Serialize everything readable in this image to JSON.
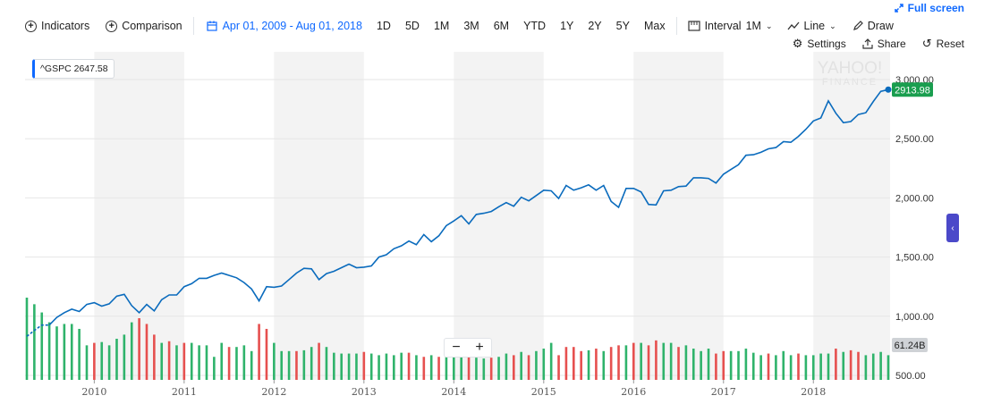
{
  "fullscreen": {
    "label": "Full screen"
  },
  "toolbar": {
    "indicators": "Indicators",
    "comparison": "Comparison",
    "date_range": "Apr 01, 2009 - Aug 01, 2018",
    "ranges": [
      "1D",
      "5D",
      "1M",
      "3M",
      "6M",
      "YTD",
      "1Y",
      "2Y",
      "5Y",
      "Max"
    ],
    "interval_label": "Interval",
    "interval_value": "1M",
    "chart_type": "Line",
    "draw": "Draw",
    "settings": "Settings",
    "share": "Share",
    "reset": "Reset"
  },
  "legend": {
    "symbol": "^GSPC",
    "value": "2647.58"
  },
  "watermark": {
    "line1": "YAHOO!",
    "line2": "FINANCE"
  },
  "colors": {
    "line": "#0a6bbd",
    "up": "#2fb36b",
    "down": "#e6504f",
    "band": "#f3f3f3",
    "grid": "#e6e6e6",
    "last_badge": "#1a9e4f",
    "vol_badge": "#cfd2d6",
    "accent": "#0f69ff"
  },
  "zoom": {
    "minus": "−",
    "plus": "+"
  },
  "chart_data": {
    "type": "line",
    "title": "",
    "x_ticks": [
      "2010",
      "2011",
      "2012",
      "2013",
      "2014",
      "2015",
      "2016",
      "2017",
      "2018"
    ],
    "y_ticks": [
      "3,000.00",
      "2,500.00",
      "2,000.00",
      "1,500.00",
      "1,000.00",
      "500.00"
    ],
    "y_tick_values": [
      3000,
      2500,
      2000,
      1500,
      1000,
      500
    ],
    "ylim": [
      500,
      3100
    ],
    "last_value_label": "2913.98",
    "volume_label": "61.24B",
    "series": [
      {
        "values": [
          830,
          880,
          925,
          925,
          990,
          1030,
          1060,
          1040,
          1100,
          1115,
          1085,
          1105,
          1170,
          1185,
          1090,
          1030,
          1100,
          1045,
          1140,
          1180,
          1180,
          1250,
          1275,
          1320,
          1320,
          1345,
          1365,
          1345,
          1325,
          1285,
          1230,
          1130,
          1250,
          1245,
          1255,
          1310,
          1365,
          1405,
          1400,
          1310,
          1360,
          1380,
          1410,
          1440,
          1410,
          1415,
          1425,
          1500,
          1520,
          1570,
          1595,
          1635,
          1605,
          1690,
          1630,
          1680,
          1765,
          1805,
          1850,
          1780,
          1860,
          1870,
          1885,
          1925,
          1960,
          1930,
          2005,
          1975,
          2020,
          2065,
          2060,
          1995,
          2105,
          2065,
          2085,
          2110,
          2065,
          2105,
          1970,
          1920,
          2080,
          2080,
          2050,
          1945,
          1940,
          2060,
          2065,
          2095,
          2100,
          2170,
          2170,
          2165,
          2125,
          2200,
          2240,
          2280,
          2360,
          2365,
          2385,
          2415,
          2425,
          2475,
          2470,
          2520,
          2580,
          2650,
          2675,
          2820,
          2715,
          2635,
          2645,
          2705,
          2720,
          2815,
          2900,
          2915
        ]
      }
    ],
    "volume": [
      {
        "v": 1.0,
        "d": "up"
      },
      {
        "v": 0.92,
        "d": "up"
      },
      {
        "v": 0.82,
        "d": "up"
      },
      {
        "v": 0.7,
        "d": "up"
      },
      {
        "v": 0.65,
        "d": "up"
      },
      {
        "v": 0.68,
        "d": "up"
      },
      {
        "v": 0.68,
        "d": "up"
      },
      {
        "v": 0.62,
        "d": "up"
      },
      {
        "v": 0.42,
        "d": "up"
      },
      {
        "v": 0.45,
        "d": "down"
      },
      {
        "v": 0.46,
        "d": "up"
      },
      {
        "v": 0.42,
        "d": "up"
      },
      {
        "v": 0.5,
        "d": "up"
      },
      {
        "v": 0.55,
        "d": "up"
      },
      {
        "v": 0.7,
        "d": "up"
      },
      {
        "v": 0.75,
        "d": "down"
      },
      {
        "v": 0.68,
        "d": "down"
      },
      {
        "v": 0.55,
        "d": "down"
      },
      {
        "v": 0.45,
        "d": "up"
      },
      {
        "v": 0.47,
        "d": "down"
      },
      {
        "v": 0.42,
        "d": "up"
      },
      {
        "v": 0.45,
        "d": "down"
      },
      {
        "v": 0.45,
        "d": "up"
      },
      {
        "v": 0.42,
        "d": "up"
      },
      {
        "v": 0.42,
        "d": "up"
      },
      {
        "v": 0.28,
        "d": "up"
      },
      {
        "v": 0.45,
        "d": "up"
      },
      {
        "v": 0.4,
        "d": "down"
      },
      {
        "v": 0.4,
        "d": "up"
      },
      {
        "v": 0.42,
        "d": "up"
      },
      {
        "v": 0.35,
        "d": "up"
      },
      {
        "v": 0.68,
        "d": "down"
      },
      {
        "v": 0.62,
        "d": "down"
      },
      {
        "v": 0.45,
        "d": "up"
      },
      {
        "v": 0.35,
        "d": "up"
      },
      {
        "v": 0.35,
        "d": "up"
      },
      {
        "v": 0.35,
        "d": "down"
      },
      {
        "v": 0.36,
        "d": "up"
      },
      {
        "v": 0.4,
        "d": "up"
      },
      {
        "v": 0.45,
        "d": "down"
      },
      {
        "v": 0.4,
        "d": "up"
      },
      {
        "v": 0.33,
        "d": "up"
      },
      {
        "v": 0.32,
        "d": "up"
      },
      {
        "v": 0.32,
        "d": "up"
      },
      {
        "v": 0.32,
        "d": "up"
      },
      {
        "v": 0.34,
        "d": "down"
      },
      {
        "v": 0.32,
        "d": "up"
      },
      {
        "v": 0.3,
        "d": "up"
      },
      {
        "v": 0.32,
        "d": "up"
      },
      {
        "v": 0.3,
        "d": "up"
      },
      {
        "v": 0.33,
        "d": "up"
      },
      {
        "v": 0.33,
        "d": "down"
      },
      {
        "v": 0.3,
        "d": "up"
      },
      {
        "v": 0.28,
        "d": "down"
      },
      {
        "v": 0.3,
        "d": "up"
      },
      {
        "v": 0.28,
        "d": "down"
      },
      {
        "v": 0.28,
        "d": "up"
      },
      {
        "v": 0.28,
        "d": "up"
      },
      {
        "v": 0.29,
        "d": "up"
      },
      {
        "v": 0.3,
        "d": "down"
      },
      {
        "v": 0.27,
        "d": "up"
      },
      {
        "v": 0.26,
        "d": "up"
      },
      {
        "v": 0.27,
        "d": "down"
      },
      {
        "v": 0.28,
        "d": "up"
      },
      {
        "v": 0.32,
        "d": "up"
      },
      {
        "v": 0.3,
        "d": "down"
      },
      {
        "v": 0.34,
        "d": "up"
      },
      {
        "v": 0.3,
        "d": "down"
      },
      {
        "v": 0.35,
        "d": "up"
      },
      {
        "v": 0.38,
        "d": "up"
      },
      {
        "v": 0.45,
        "d": "up"
      },
      {
        "v": 0.3,
        "d": "down"
      },
      {
        "v": 0.4,
        "d": "down"
      },
      {
        "v": 0.4,
        "d": "down"
      },
      {
        "v": 0.35,
        "d": "down"
      },
      {
        "v": 0.36,
        "d": "up"
      },
      {
        "v": 0.38,
        "d": "down"
      },
      {
        "v": 0.35,
        "d": "up"
      },
      {
        "v": 0.4,
        "d": "down"
      },
      {
        "v": 0.42,
        "d": "down"
      },
      {
        "v": 0.42,
        "d": "up"
      },
      {
        "v": 0.45,
        "d": "down"
      },
      {
        "v": 0.45,
        "d": "up"
      },
      {
        "v": 0.42,
        "d": "down"
      },
      {
        "v": 0.48,
        "d": "down"
      },
      {
        "v": 0.45,
        "d": "up"
      },
      {
        "v": 0.45,
        "d": "up"
      },
      {
        "v": 0.4,
        "d": "down"
      },
      {
        "v": 0.42,
        "d": "up"
      },
      {
        "v": 0.38,
        "d": "up"
      },
      {
        "v": 0.35,
        "d": "up"
      },
      {
        "v": 0.38,
        "d": "up"
      },
      {
        "v": 0.32,
        "d": "down"
      },
      {
        "v": 0.35,
        "d": "down"
      },
      {
        "v": 0.35,
        "d": "up"
      },
      {
        "v": 0.35,
        "d": "up"
      },
      {
        "v": 0.38,
        "d": "up"
      },
      {
        "v": 0.33,
        "d": "up"
      },
      {
        "v": 0.3,
        "d": "up"
      },
      {
        "v": 0.32,
        "d": "down"
      },
      {
        "v": 0.3,
        "d": "up"
      },
      {
        "v": 0.35,
        "d": "up"
      },
      {
        "v": 0.3,
        "d": "up"
      },
      {
        "v": 0.32,
        "d": "down"
      },
      {
        "v": 0.3,
        "d": "up"
      },
      {
        "v": 0.3,
        "d": "up"
      },
      {
        "v": 0.32,
        "d": "up"
      },
      {
        "v": 0.32,
        "d": "up"
      },
      {
        "v": 0.38,
        "d": "down"
      },
      {
        "v": 0.34,
        "d": "up"
      },
      {
        "v": 0.36,
        "d": "down"
      },
      {
        "v": 0.34,
        "d": "down"
      },
      {
        "v": 0.3,
        "d": "up"
      },
      {
        "v": 0.32,
        "d": "up"
      },
      {
        "v": 0.34,
        "d": "up"
      },
      {
        "v": 0.3,
        "d": "up"
      }
    ]
  }
}
